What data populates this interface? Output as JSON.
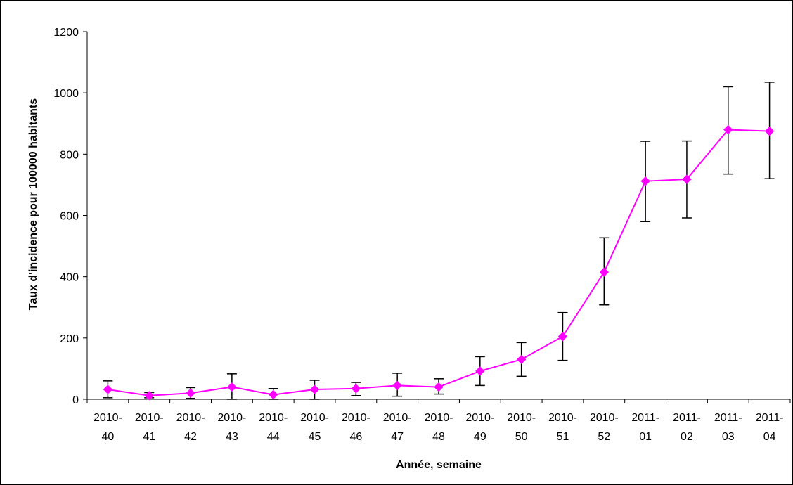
{
  "chart_data": {
    "type": "line",
    "title": "",
    "xlabel": "Année, semaine",
    "ylabel": "Taux d'incidence pour 100000 habitants",
    "ylim": [
      0,
      1200
    ],
    "yticks": [
      0,
      200,
      400,
      600,
      800,
      1000,
      1200
    ],
    "grid": false,
    "legend": "none",
    "categories": [
      [
        "2010-",
        "40"
      ],
      [
        "2010-",
        "41"
      ],
      [
        "2010-",
        "42"
      ],
      [
        "2010-",
        "43"
      ],
      [
        "2010-",
        "44"
      ],
      [
        "2010-",
        "45"
      ],
      [
        "2010-",
        "46"
      ],
      [
        "2010-",
        "47"
      ],
      [
        "2010-",
        "48"
      ],
      [
        "2010-",
        "49"
      ],
      [
        "2010-",
        "50"
      ],
      [
        "2010-",
        "51"
      ],
      [
        "2010-",
        "52"
      ],
      [
        "2011-",
        "01"
      ],
      [
        "2011-",
        "02"
      ],
      [
        "2011-",
        "03"
      ],
      [
        "2011-",
        "04"
      ]
    ],
    "series": [
      {
        "color": "#ff00ff",
        "marker": "diamond",
        "values": [
          32,
          12,
          20,
          40,
          15,
          32,
          35,
          45,
          40,
          92,
          130,
          205,
          415,
          712,
          718,
          880,
          875
        ],
        "error_low": [
          5,
          5,
          3,
          0,
          0,
          0,
          12,
          10,
          17,
          45,
          75,
          127,
          308,
          580,
          592,
          735,
          720
        ],
        "error_high": [
          60,
          22,
          38,
          83,
          35,
          62,
          55,
          85,
          67,
          139,
          185,
          283,
          527,
          842,
          843,
          1020,
          1035
        ]
      }
    ],
    "error_bar_color": "#000000"
  }
}
